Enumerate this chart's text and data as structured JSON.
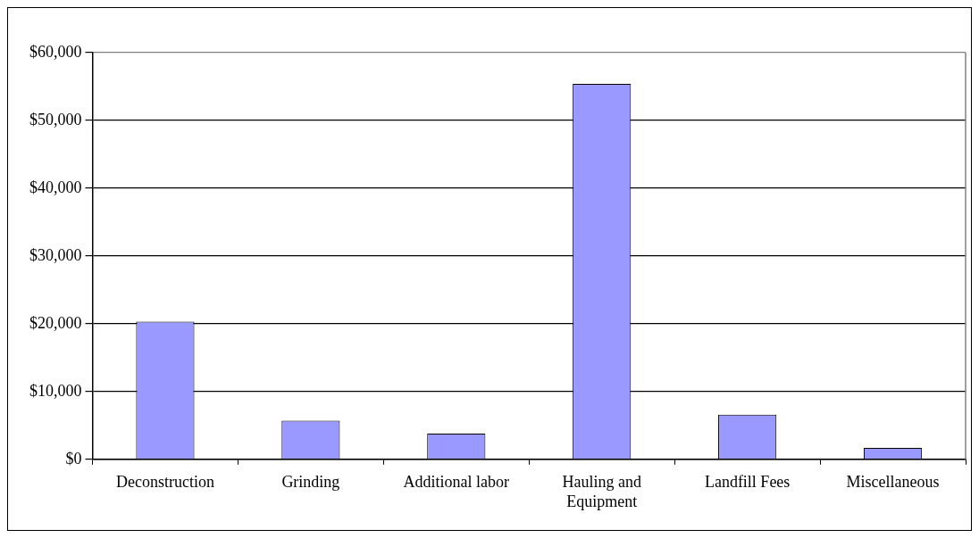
{
  "chart_data": {
    "type": "bar",
    "categories": [
      "Deconstruction",
      "Grinding",
      "Additional labor",
      "Hauling and Equipment",
      "Landfill Fees",
      "Miscellaneous"
    ],
    "values": [
      20300,
      5700,
      3800,
      55400,
      6600,
      1700
    ],
    "color": "#9999ff",
    "ylim": [
      0,
      60000
    ],
    "yticks": [
      {
        "value": 0,
        "label": "$0"
      },
      {
        "value": 10000,
        "label": "$10,000"
      },
      {
        "value": 20000,
        "label": "$20,000"
      },
      {
        "value": 30000,
        "label": "$30,000"
      },
      {
        "value": 40000,
        "label": "$40,000"
      },
      {
        "value": 50000,
        "label": "$50,000"
      },
      {
        "value": 60000,
        "label": "$60,000"
      }
    ],
    "grid": "y",
    "legend": false
  }
}
